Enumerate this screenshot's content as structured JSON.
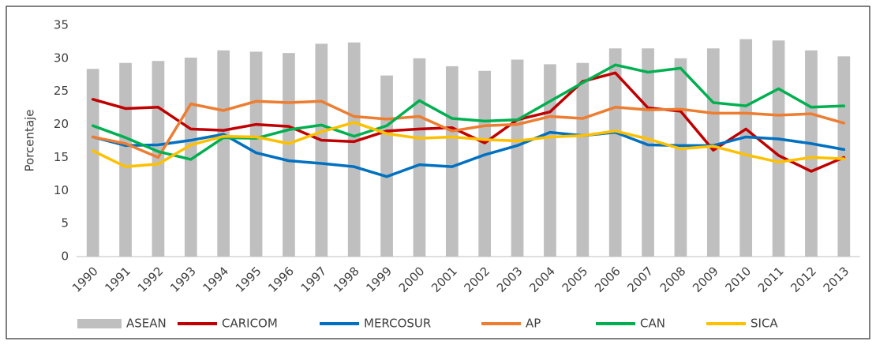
{
  "chart_data": {
    "type": "combo",
    "y_label": "Porcentaje",
    "categories": [
      "1990",
      "1991",
      "1992",
      "1993",
      "1994",
      "1995",
      "1996",
      "1997",
      "1998",
      "1999",
      "2000",
      "2001",
      "2002",
      "2003",
      "2004",
      "2005",
      "2006",
      "2007",
      "2008",
      "2009",
      "2010",
      "2011",
      "2012",
      "2013"
    ],
    "ylim": [
      0,
      35
    ],
    "yticks": [
      0,
      5,
      10,
      15,
      20,
      25,
      30,
      35
    ],
    "grid": false,
    "legend": "bottom",
    "series": [
      {
        "name": "ASEAN",
        "type": "bar",
        "color": "#bfbfbf",
        "values": [
          28.4,
          29.3,
          29.6,
          30.1,
          31.2,
          31.0,
          30.8,
          32.2,
          32.4,
          27.4,
          30.0,
          28.8,
          28.1,
          29.8,
          29.1,
          29.3,
          31.5,
          31.5,
          30.0,
          31.5,
          32.9,
          32.7,
          31.2,
          30.3
        ]
      },
      {
        "name": "CARICOM",
        "type": "line",
        "color": "#c00000",
        "values": [
          23.8,
          22.4,
          22.6,
          19.3,
          19.1,
          20.0,
          19.7,
          17.6,
          17.4,
          19.0,
          19.3,
          19.5,
          17.2,
          20.7,
          21.9,
          26.5,
          27.8,
          22.5,
          22.0,
          16.1,
          19.3,
          15.3,
          12.9,
          15.0
        ]
      },
      {
        "name": "MERCOSUR",
        "type": "line",
        "color": "#0070c0",
        "values": [
          18.1,
          16.8,
          16.9,
          17.6,
          18.5,
          15.7,
          14.5,
          14.1,
          13.6,
          12.1,
          13.9,
          13.6,
          15.4,
          16.8,
          18.8,
          18.3,
          18.8,
          16.9,
          16.8,
          16.8,
          18.1,
          17.8,
          17.1,
          16.2
        ]
      },
      {
        "name": "AP",
        "type": "line",
        "color": "#ed7d31",
        "values": [
          18.1,
          17.1,
          15.0,
          23.1,
          22.1,
          23.5,
          23.3,
          23.5,
          21.2,
          20.8,
          21.2,
          19.0,
          19.8,
          20.0,
          21.2,
          20.9,
          22.6,
          22.2,
          22.3,
          21.7,
          21.7,
          21.4,
          21.6,
          20.2
        ]
      },
      {
        "name": "CAN",
        "type": "line",
        "color": "#00b050",
        "values": [
          19.8,
          18.0,
          15.9,
          14.7,
          18.0,
          17.9,
          19.2,
          19.9,
          18.2,
          19.8,
          23.6,
          20.9,
          20.5,
          20.7,
          23.5,
          26.3,
          29.0,
          27.9,
          28.5,
          23.3,
          22.8,
          25.4,
          22.6,
          22.8
        ]
      },
      {
        "name": "SICA",
        "type": "line",
        "color": "#ffc000",
        "values": [
          16.0,
          13.6,
          14.0,
          16.9,
          18.2,
          18.1,
          17.1,
          18.9,
          20.3,
          18.6,
          17.9,
          18.1,
          17.7,
          17.5,
          18.1,
          18.3,
          19.0,
          17.8,
          16.3,
          16.7,
          15.4,
          14.3,
          15.0,
          14.8
        ]
      }
    ]
  }
}
